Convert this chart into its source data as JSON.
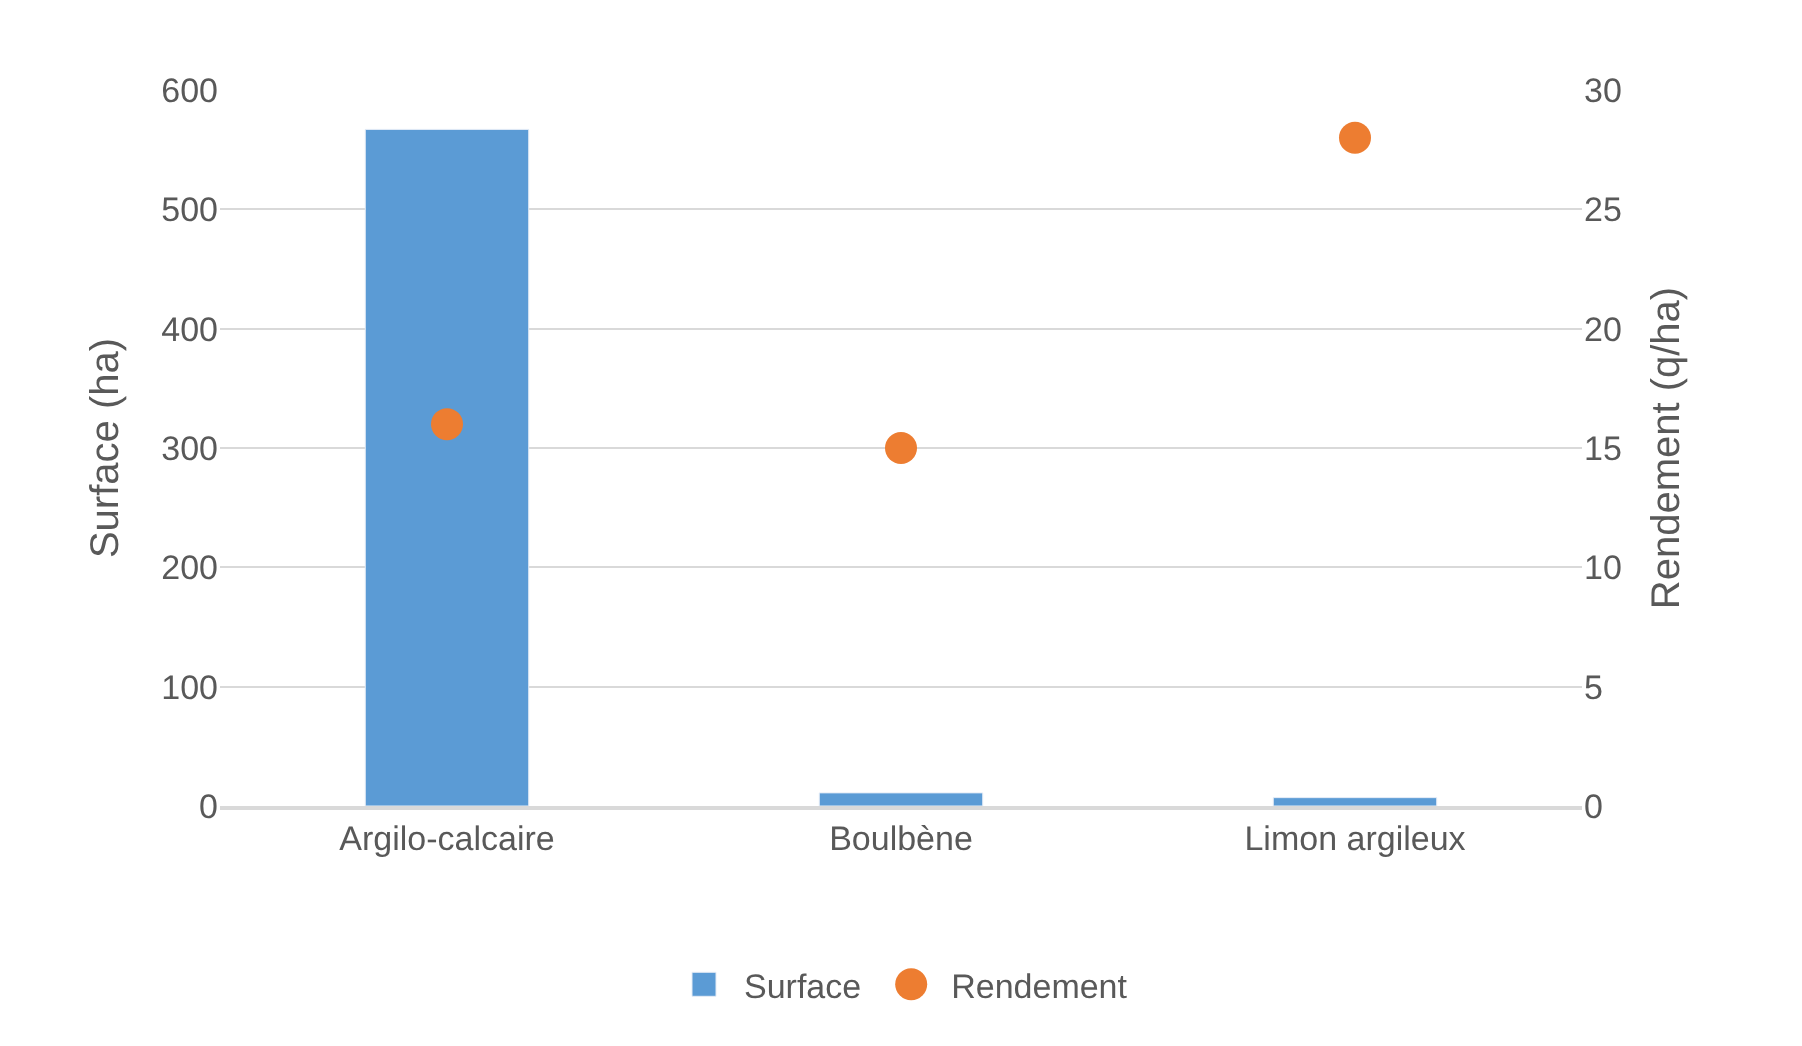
{
  "chart_data": {
    "type": "bar",
    "categories": [
      "Argilo-calcaire",
      "Boulbène",
      "Limon argileux"
    ],
    "series": [
      {
        "name": "Surface",
        "color": "#5b9bd5",
        "values": [
          567,
          11,
          7
        ]
      },
      {
        "name": "Rendement",
        "type": "scatter",
        "axis": "y2",
        "color": "#ed7d31",
        "marker": "circle",
        "values": [
          16,
          15,
          28
        ]
      }
    ],
    "ylabel": "Surface (ha)",
    "y2label": "Rendement (q/ha)",
    "ylim": [
      0,
      600
    ],
    "yticks": [
      0,
      100,
      200,
      300,
      400,
      500,
      600
    ],
    "y2lim": [
      0,
      30
    ],
    "y2ticks": [
      0,
      5,
      10,
      15,
      20,
      25,
      30
    ],
    "grid": "y",
    "legend": "bottom"
  }
}
